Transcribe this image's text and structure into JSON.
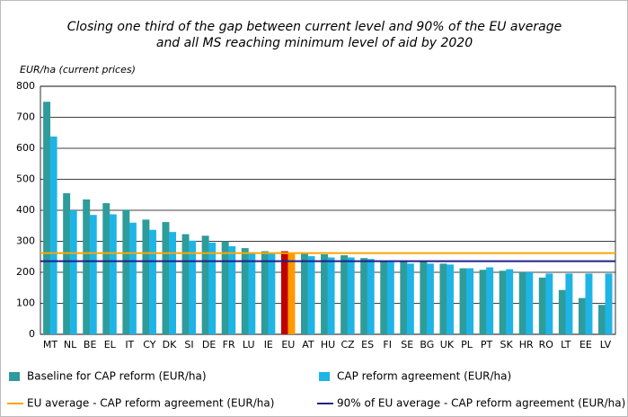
{
  "chart_data": {
    "type": "bar",
    "title": [
      "Closing one third of the gap between current level and 90% of the EU average",
      "and all MS reaching minimum level of aid by 2020"
    ],
    "y_label": "EUR/ha (current prices)",
    "categories": [
      "MT",
      "NL",
      "BE",
      "EL",
      "IT",
      "CY",
      "DK",
      "SI",
      "DE",
      "FR",
      "LU",
      "IE",
      "EU",
      "AT",
      "HU",
      "CZ",
      "ES",
      "FI",
      "SE",
      "BG",
      "UK",
      "PL",
      "PT",
      "SK",
      "HR",
      "RO",
      "LT",
      "EE",
      "LV"
    ],
    "series": [
      {
        "name": "Baseline for CAP reform (EUR/ha)",
        "color": "#2e9c9a",
        "values": [
          750,
          455,
          435,
          423,
          402,
          370,
          362,
          323,
          318,
          300,
          278,
          268,
          268,
          263,
          258,
          255,
          246,
          236,
          235,
          235,
          228,
          213,
          208,
          205,
          200,
          183,
          143,
          117,
          95
        ]
      },
      {
        "name": "CAP reform agreement (EUR/ha)",
        "color": "#1eb4e6",
        "values": [
          638,
          400,
          385,
          387,
          360,
          337,
          330,
          302,
          296,
          284,
          265,
          260,
          262,
          252,
          248,
          248,
          243,
          233,
          228,
          228,
          225,
          213,
          216,
          210,
          200,
          196,
          196,
          196,
          196
        ]
      }
    ],
    "highlight": {
      "category": "EU",
      "colors": [
        "#c00000",
        "#ff9900"
      ]
    },
    "reference_lines": [
      {
        "name": "EU average - CAP reform agreement (EUR/ha)",
        "color": "#ffa500",
        "value": 262
      },
      {
        "name": "90% of EU average - CAP reform agreement (EUR/ha)",
        "color": "#1f1f8f",
        "value": 236
      }
    ],
    "ylim": [
      0,
      800
    ],
    "yticks": [
      0,
      100,
      200,
      300,
      400,
      500,
      600,
      700,
      800
    ],
    "grid": true
  }
}
